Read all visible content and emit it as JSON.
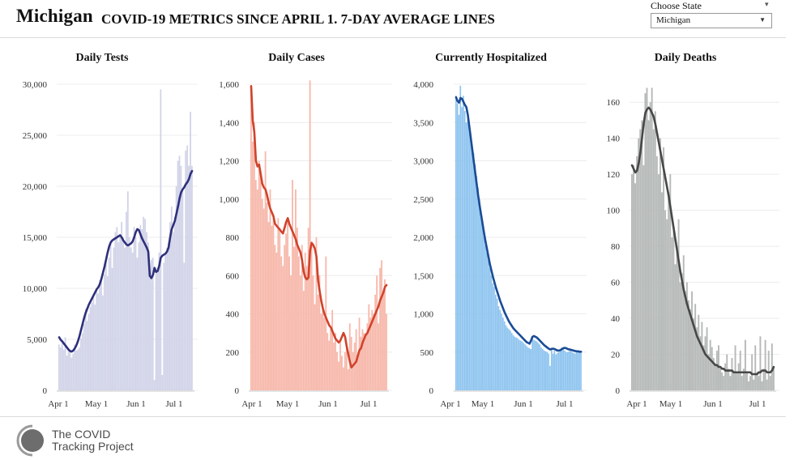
{
  "header": {
    "state_name": "Michigan",
    "title": "COVID-19 METRICS SINCE APRIL 1. 7-DAY AVERAGE LINES",
    "choose_label": "Choose State",
    "selected_state": "Michigan"
  },
  "footer": {
    "org_line1": "The COVID",
    "org_line2": "Tracking Project"
  },
  "chart_data": [
    {
      "type": "bar",
      "title": "Daily Tests",
      "x_ticks": [
        "Apr 1",
        "May 1",
        "Jun 1",
        "Jul 1"
      ],
      "ylim": [
        0,
        30000
      ],
      "y_ticks": [
        0,
        5000,
        10000,
        15000,
        20000,
        25000,
        30000
      ],
      "y_tick_labels": [
        "0",
        "5,000",
        "10,000",
        "15,000",
        "20,000",
        "25,000",
        "30,000"
      ],
      "bar_color": "#d1d3e8",
      "line_color": "#2e2f7b",
      "x_start": "Apr 1",
      "daily": [
        4500,
        4200,
        4900,
        4000,
        5200,
        3400,
        4000,
        3800,
        3200,
        3600,
        4500,
        3900,
        4000,
        4200,
        5100,
        5600,
        6500,
        8000,
        6800,
        7500,
        8200,
        8600,
        9300,
        8400,
        10000,
        9500,
        10800,
        11000,
        9300,
        11400,
        12500,
        11200,
        13000,
        14500,
        12000,
        14000,
        15500,
        16000,
        14500,
        15000,
        16500,
        15000,
        14000,
        17500,
        19500,
        15000,
        14000,
        13500,
        16000,
        15000,
        13000,
        14500,
        16200,
        15800,
        17000,
        16800,
        15500,
        14500,
        11000,
        12800,
        13000,
        1000,
        11500,
        12000,
        13500,
        29500,
        1500,
        12500,
        13500,
        14000,
        14500,
        16500,
        18000,
        15500,
        17000,
        20000,
        22500,
        23000,
        22000,
        19500,
        12500,
        23500,
        24000,
        22000,
        27300,
        22000
      ],
      "avg": [
        5200,
        4950,
        4800,
        4600,
        4400,
        4200,
        4000,
        3850,
        3800,
        3900,
        4100,
        4400,
        4800,
        5300,
        5900,
        6500,
        7100,
        7600,
        8000,
        8400,
        8700,
        9000,
        9300,
        9600,
        9900,
        10100,
        10400,
        10900,
        11500,
        12100,
        12800,
        13500,
        14100,
        14500,
        14700,
        14800,
        14900,
        15000,
        15100,
        15200,
        15000,
        14700,
        14500,
        14300,
        14200,
        14300,
        14400,
        14600,
        15000,
        15500,
        15800,
        15700,
        15300,
        14900,
        14600,
        14300,
        14000,
        13600,
        11200,
        11000,
        11300,
        12000,
        11600,
        11700,
        12200,
        13000,
        13200,
        13300,
        13400,
        13600,
        14000,
        15000,
        15800,
        16200,
        16600,
        17300,
        18000,
        18800,
        19400,
        19700,
        19900,
        20200,
        20400,
        20700,
        21200,
        21500
      ]
    },
    {
      "type": "bar",
      "title": "Daily Cases",
      "x_ticks": [
        "Apr 1",
        "May 1",
        "Jun 1",
        "Jul 1"
      ],
      "ylim": [
        0,
        1600
      ],
      "y_ticks": [
        0,
        200,
        400,
        600,
        800,
        1000,
        1200,
        1400,
        1600
      ],
      "y_tick_labels": [
        "0",
        "200",
        "400",
        "600",
        "800",
        "1,000",
        "1,200",
        "1,400",
        "1,600"
      ],
      "bar_color": "#f7b8ab",
      "line_color": "#d0432b",
      "x_start": "Apr 1",
      "daily": [
        1550,
        1300,
        1400,
        1100,
        1050,
        1200,
        1150,
        1000,
        950,
        1250,
        980,
        880,
        1050,
        860,
        900,
        760,
        720,
        900,
        850,
        700,
        650,
        760,
        820,
        900,
        700,
        600,
        1100,
        750,
        1050,
        850,
        700,
        600,
        760,
        520,
        720,
        650,
        850,
        1620,
        780,
        600,
        450,
        800,
        500,
        600,
        400,
        450,
        380,
        700,
        300,
        260,
        320,
        420,
        250,
        300,
        200,
        150,
        260,
        180,
        120,
        200,
        240,
        110,
        350,
        280,
        200,
        250,
        320,
        180,
        380,
        280,
        320,
        300,
        280,
        350,
        450,
        380,
        420,
        400,
        500,
        600,
        350,
        640,
        680,
        500,
        580,
        400
      ],
      "avg": [
        1590,
        1410,
        1350,
        1200,
        1170,
        1180,
        1130,
        1080,
        1060,
        1050,
        1020,
        980,
        950,
        930,
        910,
        870,
        860,
        850,
        840,
        830,
        820,
        850,
        880,
        900,
        870,
        850,
        830,
        810,
        790,
        760,
        740,
        720,
        680,
        620,
        590,
        580,
        590,
        730,
        770,
        760,
        740,
        700,
        580,
        520,
        470,
        430,
        400,
        380,
        360,
        340,
        330,
        310,
        290,
        270,
        260,
        250,
        260,
        280,
        300,
        280,
        230,
        190,
        150,
        120,
        130,
        140,
        150,
        180,
        210,
        220,
        250,
        270,
        290,
        300,
        320,
        340,
        360,
        380,
        400,
        420,
        440,
        470,
        490,
        510,
        540,
        550
      ]
    },
    {
      "type": "bar",
      "title": "Currently Hospitalized",
      "x_ticks": [
        "Apr 1",
        "May 1",
        "Jun 1",
        "Jul 1"
      ],
      "ylim": [
        0,
        4000
      ],
      "y_ticks": [
        0,
        500,
        1000,
        1500,
        2000,
        2500,
        3000,
        3500,
        4000
      ],
      "y_tick_labels": [
        "0",
        "500",
        "1,000",
        "1,500",
        "2,000",
        "2,500",
        "3,000",
        "3,500",
        "4,000"
      ],
      "bar_color": "#8ec4ef",
      "line_color": "#1a4b96",
      "x_start": "Apr 1",
      "daily": [
        3850,
        3750,
        3600,
        3980,
        3700,
        3850,
        3650,
        3500,
        3600,
        3450,
        3300,
        3200,
        3100,
        2950,
        2800,
        2650,
        2500,
        2300,
        2200,
        2050,
        1900,
        1800,
        1700,
        1600,
        1500,
        1400,
        1350,
        1250,
        1200,
        1100,
        1050,
        1000,
        950,
        900,
        850,
        820,
        800,
        780,
        750,
        720,
        700,
        690,
        680,
        660,
        650,
        640,
        620,
        600,
        580,
        560,
        550,
        540,
        700,
        660,
        650,
        640,
        620,
        600,
        560,
        540,
        520,
        510,
        500,
        480,
        320,
        560,
        480,
        520,
        470,
        490,
        500,
        520,
        560,
        540,
        520,
        500,
        500,
        510,
        520,
        500,
        490,
        480,
        520,
        500,
        510,
        500
      ],
      "avg": [
        3830,
        3780,
        3760,
        3820,
        3810,
        3770,
        3730,
        3700,
        3600,
        3450,
        3300,
        3150,
        3000,
        2850,
        2700,
        2550,
        2420,
        2300,
        2180,
        2060,
        1950,
        1850,
        1750,
        1650,
        1570,
        1490,
        1420,
        1350,
        1290,
        1230,
        1170,
        1120,
        1070,
        1020,
        980,
        940,
        900,
        870,
        840,
        810,
        790,
        770,
        750,
        730,
        710,
        690,
        670,
        650,
        630,
        620,
        610,
        650,
        700,
        710,
        700,
        690,
        670,
        650,
        630,
        610,
        590,
        575,
        560,
        545,
        535,
        540,
        545,
        540,
        530,
        520,
        520,
        525,
        540,
        550,
        555,
        550,
        540,
        535,
        530,
        525,
        520,
        515,
        510,
        510,
        505,
        505
      ]
    },
    {
      "type": "bar",
      "title": "Daily Deaths",
      "x_ticks": [
        "Apr 1",
        "May 1",
        "Jun 1",
        "Jul 1"
      ],
      "ylim": [
        0,
        170
      ],
      "y_ticks": [
        0,
        20,
        40,
        60,
        80,
        100,
        120,
        140,
        160
      ],
      "y_tick_labels": [
        "0",
        "20",
        "40",
        "60",
        "80",
        "100",
        "120",
        "140",
        "160"
      ],
      "bar_color": "#b5b9b7",
      "line_color": "#474747",
      "x_start": "Apr 1",
      "daily": [
        120,
        125,
        115,
        130,
        140,
        145,
        150,
        125,
        165,
        168,
        150,
        160,
        168,
        145,
        155,
        130,
        120,
        140,
        110,
        135,
        100,
        95,
        110,
        120,
        85,
        90,
        70,
        80,
        95,
        60,
        65,
        75,
        55,
        60,
        50,
        45,
        55,
        40,
        48,
        35,
        42,
        30,
        38,
        25,
        30,
        35,
        20,
        28,
        24,
        18,
        15,
        22,
        25,
        12,
        10,
        8,
        15,
        20,
        12,
        8,
        18,
        10,
        25,
        10,
        15,
        22,
        8,
        12,
        28,
        10,
        5,
        8,
        20,
        6,
        25,
        10,
        8,
        30,
        5,
        12,
        28,
        6,
        22,
        8,
        26,
        12
      ],
      "avg": [
        125,
        123,
        121,
        122,
        126,
        132,
        140,
        148,
        154,
        156,
        157,
        156,
        154,
        152,
        148,
        143,
        138,
        133,
        128,
        123,
        118,
        113,
        108,
        102,
        96,
        90,
        84,
        78,
        72,
        66,
        61,
        56,
        52,
        48,
        45,
        42,
        39,
        36,
        33,
        30,
        28,
        26,
        24,
        22,
        20,
        19,
        18,
        17,
        16,
        15,
        14,
        14,
        13,
        13,
        12,
        12,
        11,
        11,
        11,
        11,
        11,
        10,
        10,
        10,
        10,
        10,
        10,
        10,
        10,
        10,
        10,
        10,
        9,
        9,
        9,
        9,
        10,
        10,
        11,
        11,
        11,
        10,
        10,
        10,
        11,
        13
      ]
    }
  ]
}
